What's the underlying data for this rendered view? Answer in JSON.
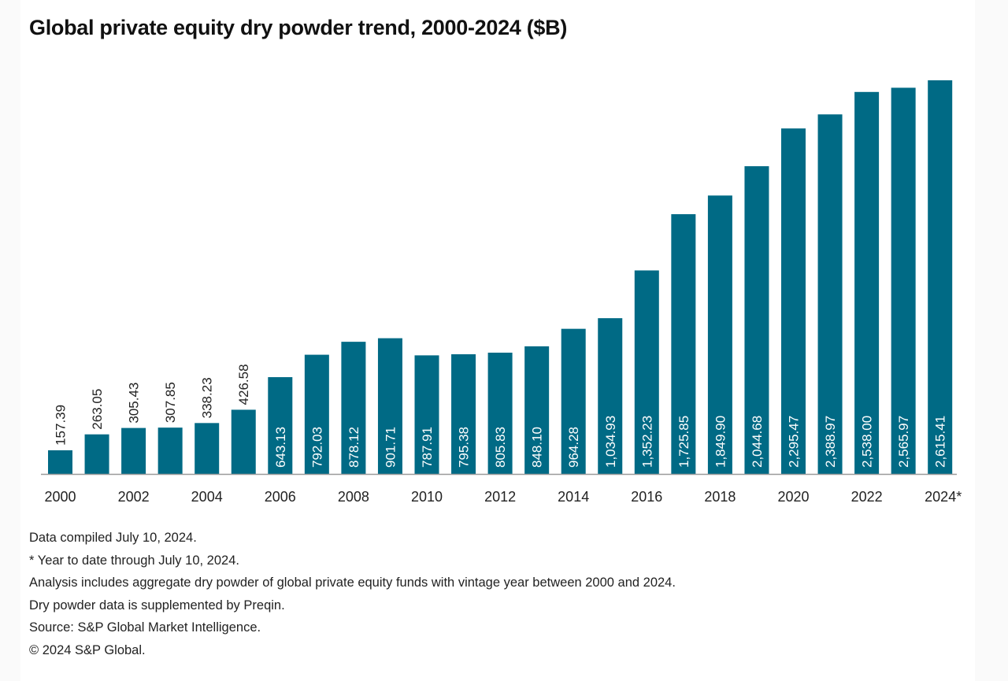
{
  "chart_data": {
    "type": "bar",
    "title": "Global private equity dry powder trend, 2000-2024 ($B)",
    "xlabel": "",
    "ylabel": "",
    "ylim": [
      0,
      2615.41
    ],
    "grid": false,
    "legend": "none",
    "categories": [
      "2000",
      "2001",
      "2002",
      "2003",
      "2004",
      "2005",
      "2006",
      "2007",
      "2008",
      "2009",
      "2010",
      "2011",
      "2012",
      "2013",
      "2014",
      "2015",
      "2016",
      "2017",
      "2018",
      "2019",
      "2020",
      "2021",
      "2022",
      "2023",
      "2024*"
    ],
    "tick_labels": [
      "2000",
      "2002",
      "2004",
      "2006",
      "2008",
      "2010",
      "2012",
      "2014",
      "2016",
      "2018",
      "2020",
      "2022",
      "2024*"
    ],
    "values": [
      157.39,
      263.05,
      305.43,
      307.85,
      338.23,
      426.58,
      643.13,
      792.03,
      878.12,
      901.71,
      787.91,
      795.38,
      805.83,
      848.1,
      964.28,
      1034.93,
      1352.23,
      1725.85,
      1849.9,
      2044.68,
      2295.47,
      2388.97,
      2538.0,
      2565.97,
      2615.41
    ],
    "data_labels": [
      "157.39",
      "263.05",
      "305.43",
      "307.85",
      "338.23",
      "426.58",
      "643.13",
      "792.03",
      "878.12",
      "901.71",
      "787.91",
      "795.38",
      "805.83",
      "848.10",
      "964.28",
      "1,034.93",
      "1,352.23",
      "1,725.85",
      "1,849.90",
      "2,044.68",
      "2,295.47",
      "2,388.97",
      "2,538.00",
      "2,565.97",
      "2,615.41"
    ],
    "bar_color": "#006a85"
  },
  "notes": [
    "Data compiled July 10, 2024.",
    "* Year to date through July 10, 2024.",
    "Analysis includes aggregate dry powder of global private equity funds with vintage year between 2000 and 2024.",
    "Dry powder data is supplemented by Preqin.",
    "Source: S&P Global Market Intelligence.",
    "© 2024 S&P Global."
  ]
}
